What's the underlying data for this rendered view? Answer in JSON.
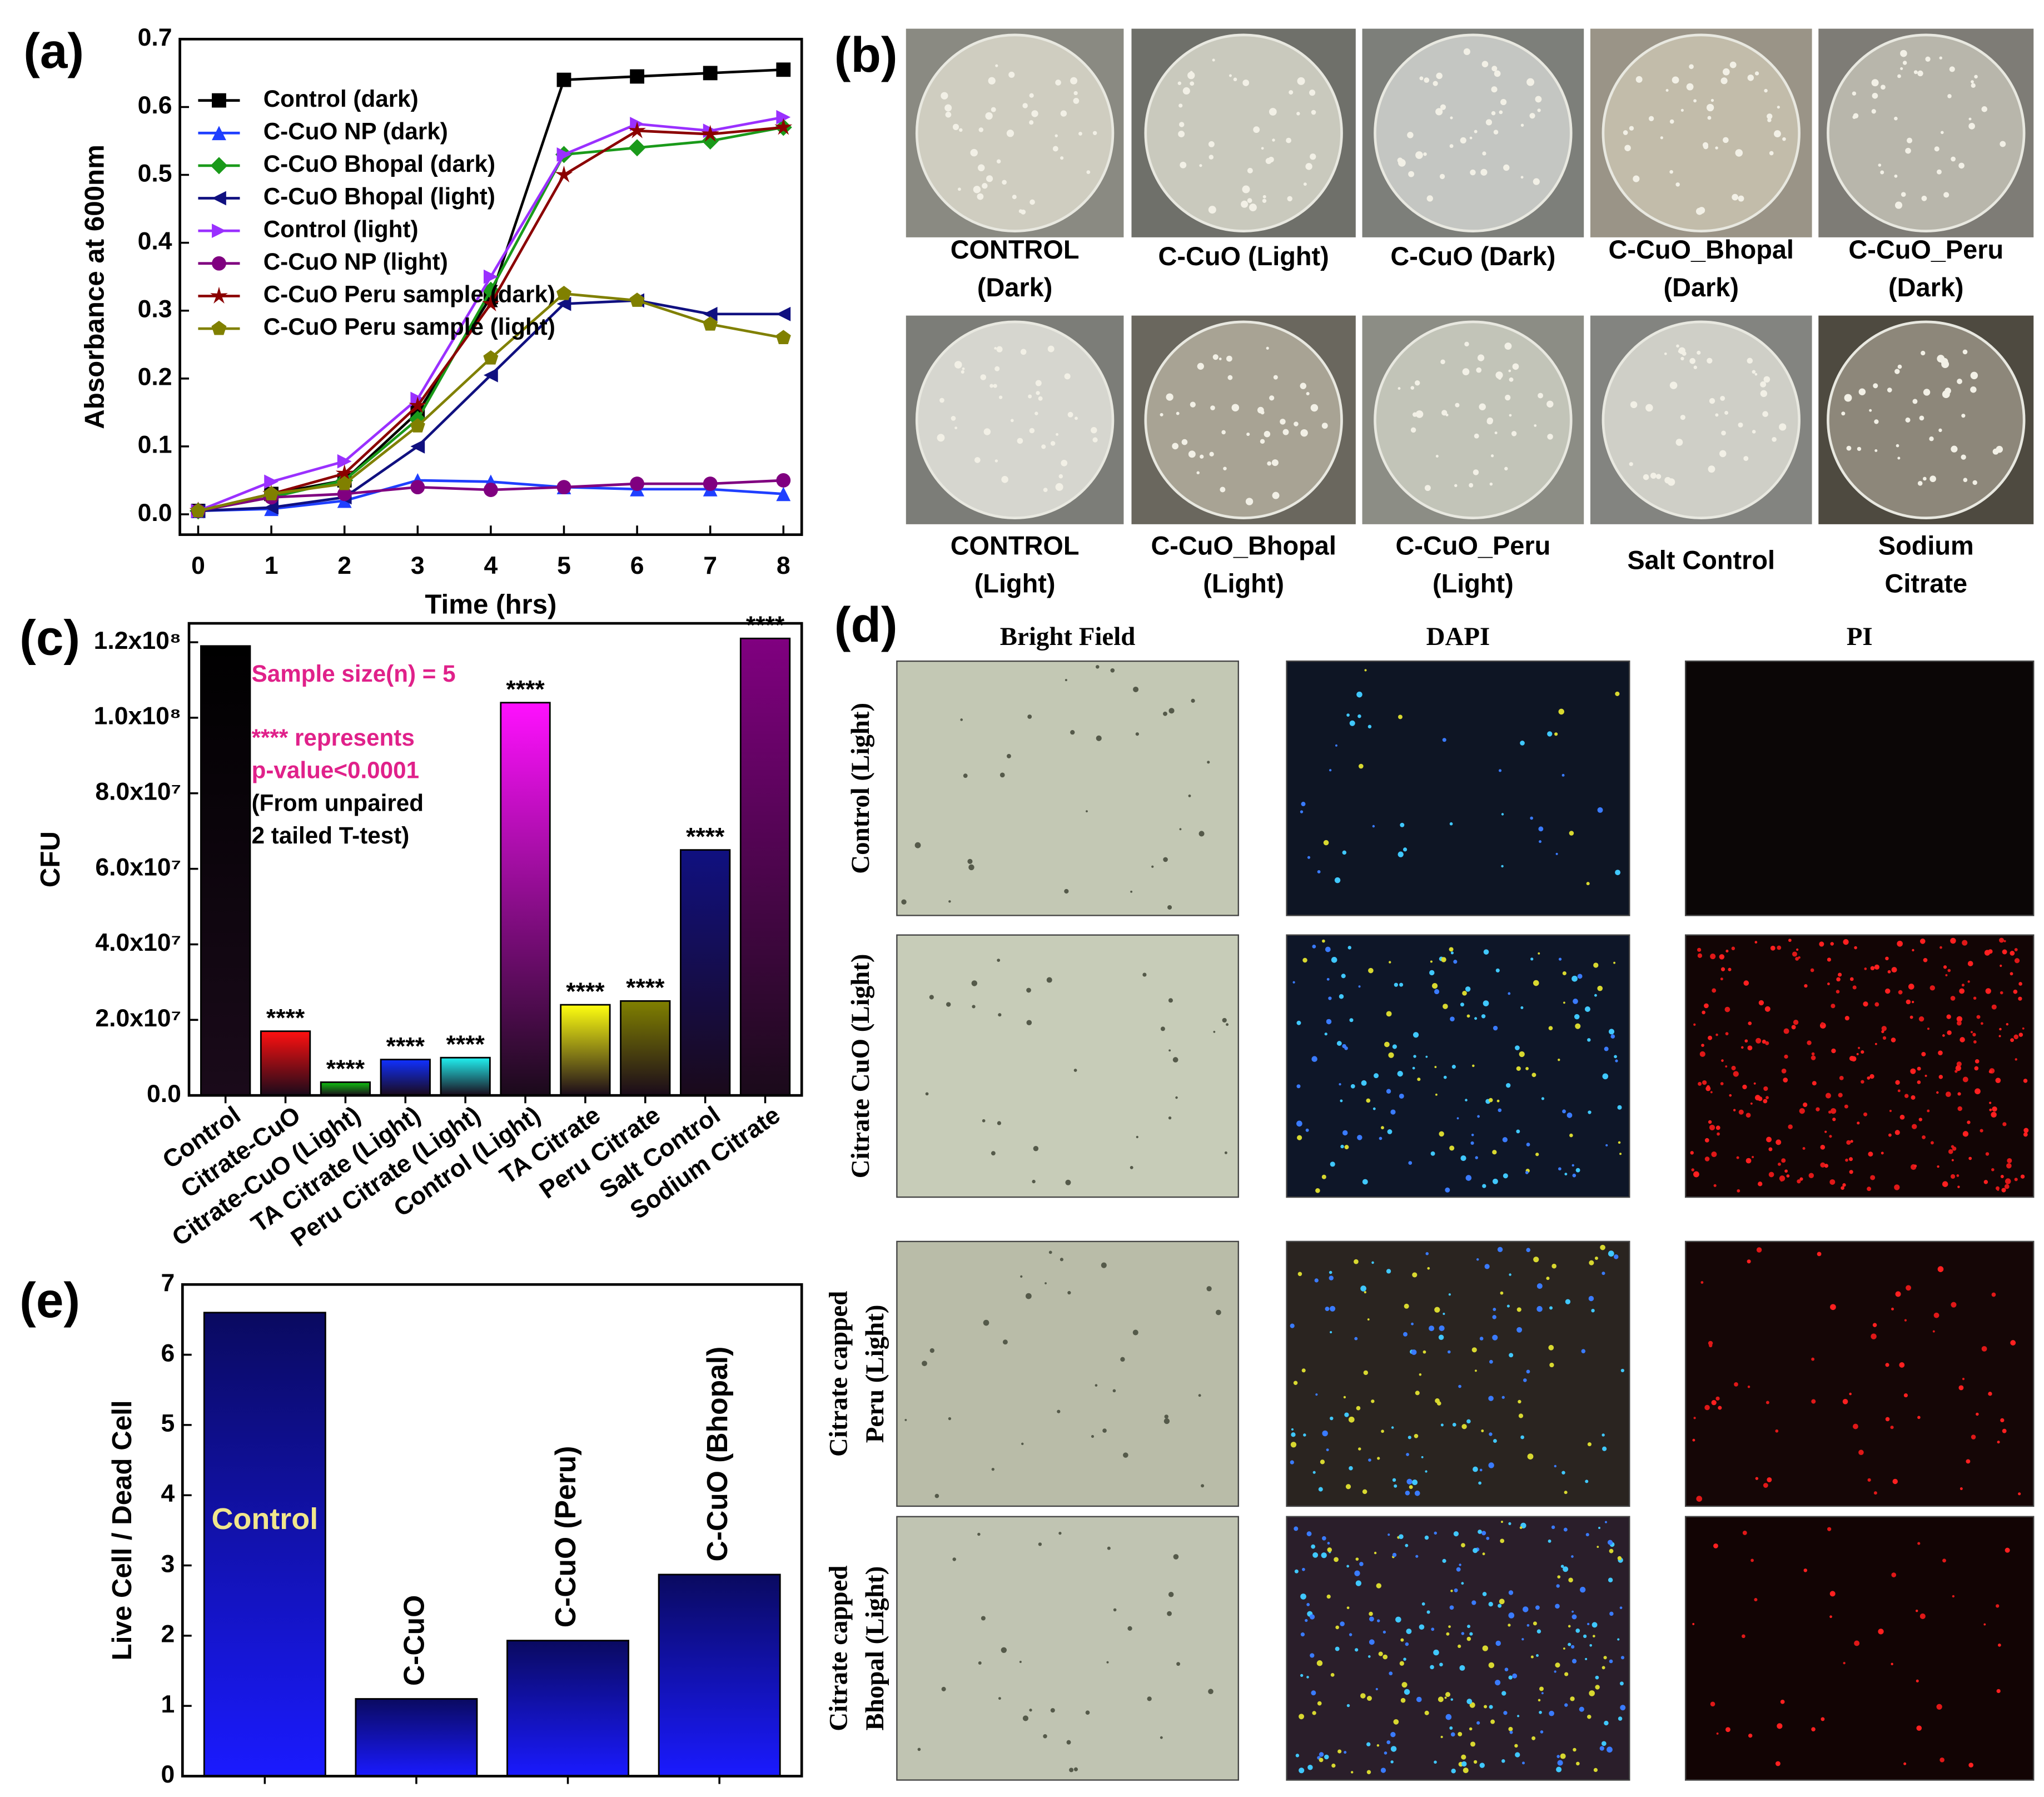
{
  "chart_data": [
    {
      "type": "line",
      "panel_label": "(a)",
      "x_label": "Time (hrs)",
      "y_label": "Absorbance at 600nm",
      "x": [
        0,
        1,
        2,
        3,
        4,
        5,
        6,
        7,
        8
      ],
      "xlim": [
        -0.25,
        8.25
      ],
      "xticks": [
        0,
        1,
        2,
        3,
        4,
        5,
        6,
        7,
        8
      ],
      "ylim": [
        -0.03,
        0.7
      ],
      "yticks": [
        {
          "value": 0,
          "label": "0.0"
        },
        0.1,
        0.2,
        0.3,
        0.4,
        0.5,
        0.6,
        0.7
      ],
      "legend": "upper left",
      "series": [
        {
          "name": "Control (dark)",
          "color": "#000000",
          "marker": "square",
          "values": [
            0.005,
            0.03,
            0.05,
            0.15,
            0.32,
            0.64,
            0.645,
            0.65,
            0.655
          ]
        },
        {
          "name": "C-CuO NP (dark)",
          "color": "#1f3fff",
          "marker": "triangle-up",
          "values": [
            0.005,
            0.008,
            0.02,
            0.05,
            0.048,
            0.04,
            0.037,
            0.037,
            0.03
          ]
        },
        {
          "name": "C-CuO Bhopal (dark)",
          "color": "#1a9a1a",
          "marker": "diamond",
          "values": [
            0.005,
            0.025,
            0.05,
            0.14,
            0.33,
            0.53,
            0.54,
            0.55,
            0.57
          ]
        },
        {
          "name": "C-CuO Bhopal (light)",
          "color": "#101080",
          "marker": "triangle-left",
          "values": [
            0.005,
            0.01,
            0.025,
            0.1,
            0.205,
            0.31,
            0.315,
            0.295,
            0.295
          ]
        },
        {
          "name": "Control (light)",
          "color": "#9a30ff",
          "marker": "triangle-right",
          "values": [
            0.005,
            0.048,
            0.078,
            0.17,
            0.35,
            0.53,
            0.575,
            0.565,
            0.585
          ]
        },
        {
          "name": "C-CuO NP (light)",
          "color": "#800080",
          "marker": "circle",
          "values": [
            0.005,
            0.025,
            0.03,
            0.04,
            0.036,
            0.04,
            0.045,
            0.045,
            0.05
          ]
        },
        {
          "name": "C-CuO Peru sample (dark)",
          "color": "#8b0000",
          "marker": "star",
          "values": [
            0.005,
            0.03,
            0.06,
            0.16,
            0.31,
            0.5,
            0.565,
            0.56,
            0.57
          ]
        },
        {
          "name": "C-CuO Peru sample (light)",
          "color": "#808000",
          "marker": "pentagon",
          "values": [
            0.005,
            0.03,
            0.045,
            0.13,
            0.23,
            0.325,
            0.315,
            0.28,
            0.26
          ]
        }
      ]
    },
    {
      "type": "bar",
      "panel_label": "(c)",
      "y_label": "CFU",
      "categories": [
        "Control",
        "Citrate-CuO",
        "Citrate-CuO (Light)",
        "TA Citrate (Light)",
        "Peru Citrate (Light)",
        "Control (Light)",
        "TA Citrate",
        "Peru Citrate",
        "Salt Control",
        "Sodium Citrate"
      ],
      "values": [
        119000000,
        17000000,
        3500000,
        9500000,
        10000000,
        104000000,
        24000000,
        25000000,
        65000000,
        121000000
      ],
      "colors": [
        "#000000",
        "#ff1010",
        "#10c010",
        "#1030ff",
        "#20f0f0",
        "#ff10ff",
        "#ffff10",
        "#808000",
        "#101080",
        "#800080"
      ],
      "annotations": [
        null,
        "****",
        "****",
        "****",
        "****",
        "****",
        "****",
        "****",
        "****",
        "****"
      ],
      "ylim": [
        0,
        125000000
      ],
      "yticks": [
        {
          "value": 0,
          "label": "0.0"
        },
        {
          "value": 20000000,
          "label": "2.0x10⁷"
        },
        {
          "value": 40000000,
          "label": "4.0x10⁷"
        },
        {
          "value": 60000000,
          "label": "6.0x10⁷"
        },
        {
          "value": 80000000,
          "label": "8.0x10⁷"
        },
        {
          "value": 100000000,
          "label": "1.0x10⁸"
        },
        {
          "value": 120000000,
          "label": "1.2x10⁸"
        }
      ],
      "notes": [
        {
          "text": "Sample size(n) = 5",
          "color": "#e0218a"
        },
        {
          "text": "**** represents",
          "color": "#e0218a"
        },
        {
          "text": "p-value<0.0001",
          "color": "#e0218a"
        },
        {
          "text": "(From unpaired",
          "color": "#000000"
        },
        {
          "text": "2 tailed T-test)",
          "color": "#000000"
        }
      ]
    },
    {
      "type": "bar",
      "panel_label": "(e)",
      "y_label": "Live Cell / Dead Cell",
      "categories": [
        "Control",
        "C-CuO",
        "C-CuO (Peru)",
        "C-CuO (Bhopal)"
      ],
      "values": [
        6.6,
        1.1,
        1.93,
        2.87
      ],
      "color": "#1a1aff",
      "ylim": [
        0,
        7
      ],
      "yticks": [
        0,
        1,
        2,
        3,
        4,
        5,
        6,
        7
      ]
    }
  ],
  "panel_b": {
    "label": "(b)",
    "plates": [
      [
        "CONTROL",
        "(Dark)"
      ],
      [
        "C-CuO (Light)"
      ],
      [
        "C-CuO (Dark)"
      ],
      [
        "C-CuO_Bhopal",
        "(Dark)"
      ],
      [
        "C-CuO_Peru",
        "(Dark)"
      ],
      [
        "CONTROL",
        "(Light)"
      ],
      [
        "C-CuO_Bhopal",
        "(Light)"
      ],
      [
        "C-CuO_Peru",
        "(Light)"
      ],
      [
        "Salt Control"
      ],
      [
        "Sodium",
        "Citrate"
      ]
    ]
  },
  "panel_d": {
    "label": "(d)",
    "columns": [
      "Bright Field",
      "DAPI",
      "PI"
    ],
    "rows": [
      [
        "Control (Light)"
      ],
      [
        "Citrate CuO (Light)"
      ],
      [
        "Citrate capped",
        "Peru (Light)"
      ],
      [
        "Citrate capped",
        "Bhopal (Light)"
      ]
    ]
  }
}
